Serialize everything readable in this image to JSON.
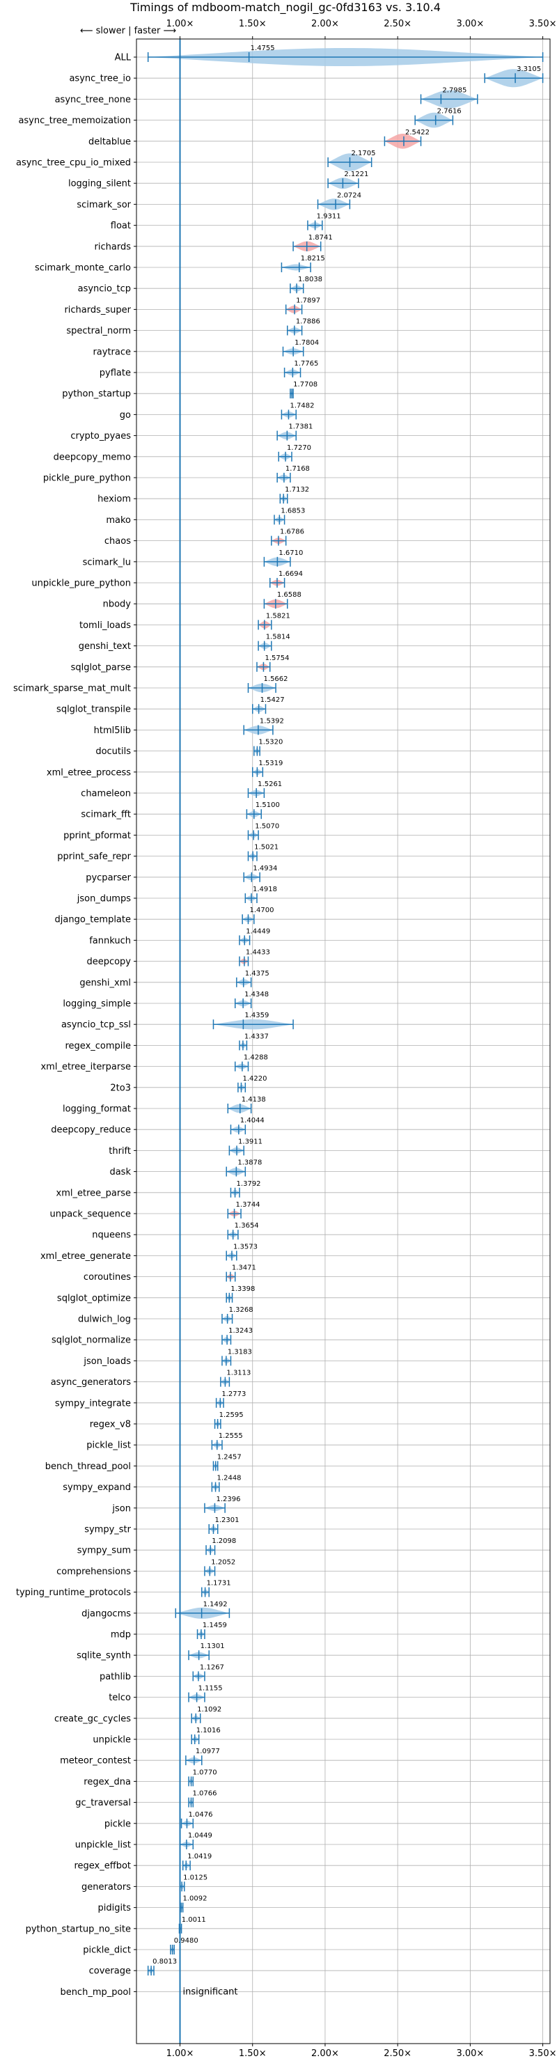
{
  "chart_data": {
    "type": "violin",
    "title": "Timings of mdboom-match_nogil_gc-0fd3163 vs. 3.10.4",
    "direction_label": "⟵ slower | faster ⟶",
    "xlim": [
      0.7,
      3.55
    ],
    "xticks": [
      1.0,
      1.5,
      2.0,
      2.5,
      3.0,
      3.5
    ],
    "xtick_labels": [
      "1.00×",
      "1.50×",
      "2.00×",
      "2.50×",
      "3.00×",
      "3.50×"
    ],
    "reference_line": 1.0,
    "grid": true,
    "colors": {
      "normal": "#a6cbe8",
      "highlight": "#f4a6a6",
      "line": "#1f77b4"
    },
    "benchmarks": [
      {
        "name": "ALL",
        "value": 1.4755,
        "label": "1.4755",
        "min": 0.78,
        "max": 3.5,
        "spread": 0.45,
        "highlight": false
      },
      {
        "name": "async_tree_io",
        "value": 3.3105,
        "label": "3.3105",
        "min": 3.1,
        "max": 3.5,
        "spread": 0.16,
        "highlight": false
      },
      {
        "name": "async_tree_none",
        "value": 2.7985,
        "label": "2.7985",
        "min": 2.66,
        "max": 3.05,
        "spread": 0.15,
        "highlight": false
      },
      {
        "name": "async_tree_memoization",
        "value": 2.7616,
        "label": "2.7616",
        "min": 2.62,
        "max": 2.88,
        "spread": 0.12,
        "highlight": false
      },
      {
        "name": "deltablue",
        "value": 2.5422,
        "label": "2.5422",
        "min": 2.41,
        "max": 2.66,
        "spread": 0.12,
        "highlight": true
      },
      {
        "name": "async_tree_cpu_io_mixed",
        "value": 2.1705,
        "label": "2.1705",
        "min": 2.02,
        "max": 2.32,
        "spread": 0.14,
        "highlight": false
      },
      {
        "name": "logging_silent",
        "value": 2.1221,
        "label": "2.1221",
        "min": 2.02,
        "max": 2.23,
        "spread": 0.09,
        "highlight": false
      },
      {
        "name": "scimark_sor",
        "value": 2.0724,
        "label": "2.0724",
        "min": 1.95,
        "max": 2.17,
        "spread": 0.09,
        "highlight": false
      },
      {
        "name": "float",
        "value": 1.9311,
        "label": "1.9311",
        "min": 1.88,
        "max": 1.98,
        "spread": 0.05,
        "highlight": false
      },
      {
        "name": "richards",
        "value": 1.8741,
        "label": "1.8741",
        "min": 1.78,
        "max": 1.97,
        "spread": 0.08,
        "highlight": true
      },
      {
        "name": "scimark_monte_carlo",
        "value": 1.8215,
        "label": "1.8215",
        "min": 1.7,
        "max": 1.9,
        "spread": 0.05,
        "highlight": false
      },
      {
        "name": "asyncio_tcp",
        "value": 1.8038,
        "label": "1.8038",
        "min": 1.76,
        "max": 1.85,
        "spread": 0.05,
        "highlight": false
      },
      {
        "name": "richards_super",
        "value": 1.7897,
        "label": "1.7897",
        "min": 1.73,
        "max": 1.84,
        "spread": 0.06,
        "highlight": true
      },
      {
        "name": "spectral_norm",
        "value": 1.7886,
        "label": "1.7886",
        "min": 1.74,
        "max": 1.84,
        "spread": 0.05,
        "highlight": false
      },
      {
        "name": "raytrace",
        "value": 1.7804,
        "label": "1.7804",
        "min": 1.71,
        "max": 1.85,
        "spread": 0.05,
        "highlight": false
      },
      {
        "name": "pyflate",
        "value": 1.7765,
        "label": "1.7765",
        "min": 1.72,
        "max": 1.83,
        "spread": 0.05,
        "highlight": false
      },
      {
        "name": "python_startup",
        "value": 1.7708,
        "label": "1.7708",
        "min": 1.76,
        "max": 1.78,
        "spread": 0.02,
        "highlight": false
      },
      {
        "name": "go",
        "value": 1.7482,
        "label": "1.7482",
        "min": 1.7,
        "max": 1.8,
        "spread": 0.05,
        "highlight": false
      },
      {
        "name": "crypto_pyaes",
        "value": 1.7381,
        "label": "1.7381",
        "min": 1.67,
        "max": 1.8,
        "spread": 0.06,
        "highlight": false
      },
      {
        "name": "deepcopy_memo",
        "value": 1.727,
        "label": "1.7270",
        "min": 1.68,
        "max": 1.77,
        "spread": 0.05,
        "highlight": false
      },
      {
        "name": "pickle_pure_python",
        "value": 1.7168,
        "label": "1.7168",
        "min": 1.67,
        "max": 1.76,
        "spread": 0.05,
        "highlight": false
      },
      {
        "name": "hexiom",
        "value": 1.7132,
        "label": "1.7132",
        "min": 1.69,
        "max": 1.74,
        "spread": 0.04,
        "highlight": false
      },
      {
        "name": "mako",
        "value": 1.6853,
        "label": "1.6853",
        "min": 1.65,
        "max": 1.72,
        "spread": 0.04,
        "highlight": false
      },
      {
        "name": "chaos",
        "value": 1.6786,
        "label": "1.6786",
        "min": 1.63,
        "max": 1.73,
        "spread": 0.05,
        "highlight": true
      },
      {
        "name": "scimark_lu",
        "value": 1.671,
        "label": "1.6710",
        "min": 1.58,
        "max": 1.76,
        "spread": 0.07,
        "highlight": false
      },
      {
        "name": "unpickle_pure_python",
        "value": 1.6694,
        "label": "1.6694",
        "min": 1.62,
        "max": 1.72,
        "spread": 0.05,
        "highlight": true
      },
      {
        "name": "nbody",
        "value": 1.6588,
        "label": "1.6588",
        "min": 1.58,
        "max": 1.74,
        "spread": 0.07,
        "highlight": true
      },
      {
        "name": "tomli_loads",
        "value": 1.5821,
        "label": "1.5821",
        "min": 1.54,
        "max": 1.63,
        "spread": 0.06,
        "highlight": true
      },
      {
        "name": "genshi_text",
        "value": 1.5814,
        "label": "1.5814",
        "min": 1.54,
        "max": 1.63,
        "spread": 0.05,
        "highlight": false
      },
      {
        "name": "sqlglot_parse",
        "value": 1.5754,
        "label": "1.5754",
        "min": 1.53,
        "max": 1.62,
        "spread": 0.05,
        "highlight": true
      },
      {
        "name": "scimark_sparse_mat_mult",
        "value": 1.5662,
        "label": "1.5662",
        "min": 1.47,
        "max": 1.66,
        "spread": 0.07,
        "highlight": false
      },
      {
        "name": "sqlglot_transpile",
        "value": 1.5427,
        "label": "1.5427",
        "min": 1.5,
        "max": 1.59,
        "spread": 0.05,
        "highlight": false
      },
      {
        "name": "html5lib",
        "value": 1.5392,
        "label": "1.5392",
        "min": 1.44,
        "max": 1.64,
        "spread": 0.07,
        "highlight": false
      },
      {
        "name": "docutils",
        "value": 1.532,
        "label": "1.5320",
        "min": 1.51,
        "max": 1.55,
        "spread": 0.03,
        "highlight": false
      },
      {
        "name": "xml_etree_process",
        "value": 1.5319,
        "label": "1.5319",
        "min": 1.5,
        "max": 1.57,
        "spread": 0.04,
        "highlight": false
      },
      {
        "name": "chameleon",
        "value": 1.5261,
        "label": "1.5261",
        "min": 1.47,
        "max": 1.58,
        "spread": 0.05,
        "highlight": false
      },
      {
        "name": "scimark_fft",
        "value": 1.51,
        "label": "1.5100",
        "min": 1.46,
        "max": 1.56,
        "spread": 0.05,
        "highlight": false
      },
      {
        "name": "pprint_pformat",
        "value": 1.507,
        "label": "1.5070",
        "min": 1.47,
        "max": 1.54,
        "spread": 0.04,
        "highlight": false
      },
      {
        "name": "pprint_safe_repr",
        "value": 1.5021,
        "label": "1.5021",
        "min": 1.47,
        "max": 1.53,
        "spread": 0.04,
        "highlight": false
      },
      {
        "name": "pycparser",
        "value": 1.4934,
        "label": "1.4934",
        "min": 1.44,
        "max": 1.55,
        "spread": 0.05,
        "highlight": false
      },
      {
        "name": "json_dumps",
        "value": 1.4918,
        "label": "1.4918",
        "min": 1.45,
        "max": 1.53,
        "spread": 0.04,
        "highlight": false
      },
      {
        "name": "django_template",
        "value": 1.47,
        "label": "1.4700",
        "min": 1.43,
        "max": 1.51,
        "spread": 0.04,
        "highlight": false
      },
      {
        "name": "fannkuch",
        "value": 1.4449,
        "label": "1.4449",
        "min": 1.41,
        "max": 1.48,
        "spread": 0.04,
        "highlight": false
      },
      {
        "name": "deepcopy",
        "value": 1.4433,
        "label": "1.4433",
        "min": 1.41,
        "max": 1.47,
        "spread": 0.04,
        "highlight": true
      },
      {
        "name": "genshi_xml",
        "value": 1.4375,
        "label": "1.4375",
        "min": 1.39,
        "max": 1.49,
        "spread": 0.05,
        "highlight": false
      },
      {
        "name": "logging_simple",
        "value": 1.4348,
        "label": "1.4348",
        "min": 1.38,
        "max": 1.49,
        "spread": 0.05,
        "highlight": false
      },
      {
        "name": "asyncio_tcp_ssl",
        "value": 1.4359,
        "label": "1.4359",
        "min": 1.23,
        "max": 1.78,
        "spread": 0.08,
        "highlight": false
      },
      {
        "name": "regex_compile",
        "value": 1.4337,
        "label": "1.4337",
        "min": 1.41,
        "max": 1.46,
        "spread": 0.03,
        "highlight": false
      },
      {
        "name": "xml_etree_iterparse",
        "value": 1.4288,
        "label": "1.4288",
        "min": 1.38,
        "max": 1.47,
        "spread": 0.04,
        "highlight": false
      },
      {
        "name": "2to3",
        "value": 1.422,
        "label": "1.4220",
        "min": 1.4,
        "max": 1.45,
        "spread": 0.03,
        "highlight": false
      },
      {
        "name": "logging_format",
        "value": 1.4138,
        "label": "1.4138",
        "min": 1.33,
        "max": 1.49,
        "spread": 0.07,
        "highlight": false
      },
      {
        "name": "deepcopy_reduce",
        "value": 1.4044,
        "label": "1.4044",
        "min": 1.35,
        "max": 1.45,
        "spread": 0.05,
        "highlight": false
      },
      {
        "name": "thrift",
        "value": 1.3911,
        "label": "1.3911",
        "min": 1.34,
        "max": 1.44,
        "spread": 0.05,
        "highlight": false
      },
      {
        "name": "dask",
        "value": 1.3878,
        "label": "1.3878",
        "min": 1.32,
        "max": 1.45,
        "spread": 0.06,
        "highlight": false
      },
      {
        "name": "xml_etree_parse",
        "value": 1.3792,
        "label": "1.3792",
        "min": 1.35,
        "max": 1.41,
        "spread": 0.04,
        "highlight": false
      },
      {
        "name": "unpack_sequence",
        "value": 1.3744,
        "label": "1.3744",
        "min": 1.33,
        "max": 1.42,
        "spread": 0.04,
        "highlight": true
      },
      {
        "name": "nqueens",
        "value": 1.3654,
        "label": "1.3654",
        "min": 1.33,
        "max": 1.4,
        "spread": 0.04,
        "highlight": false
      },
      {
        "name": "xml_etree_generate",
        "value": 1.3573,
        "label": "1.3573",
        "min": 1.32,
        "max": 1.39,
        "spread": 0.04,
        "highlight": false
      },
      {
        "name": "coroutines",
        "value": 1.3471,
        "label": "1.3471",
        "min": 1.32,
        "max": 1.38,
        "spread": 0.04,
        "highlight": true
      },
      {
        "name": "sqlglot_optimize",
        "value": 1.3398,
        "label": "1.3398",
        "min": 1.32,
        "max": 1.36,
        "spread": 0.03,
        "highlight": false
      },
      {
        "name": "dulwich_log",
        "value": 1.3268,
        "label": "1.3268",
        "min": 1.29,
        "max": 1.36,
        "spread": 0.04,
        "highlight": false
      },
      {
        "name": "sqlglot_normalize",
        "value": 1.3243,
        "label": "1.3243",
        "min": 1.29,
        "max": 1.35,
        "spread": 0.04,
        "highlight": false
      },
      {
        "name": "json_loads",
        "value": 1.3183,
        "label": "1.3183",
        "min": 1.29,
        "max": 1.35,
        "spread": 0.04,
        "highlight": false
      },
      {
        "name": "async_generators",
        "value": 1.3113,
        "label": "1.3113",
        "min": 1.28,
        "max": 1.34,
        "spread": 0.04,
        "highlight": false
      },
      {
        "name": "sympy_integrate",
        "value": 1.2773,
        "label": "1.2773",
        "min": 1.25,
        "max": 1.3,
        "spread": 0.03,
        "highlight": false
      },
      {
        "name": "regex_v8",
        "value": 1.2595,
        "label": "1.2595",
        "min": 1.24,
        "max": 1.28,
        "spread": 0.02,
        "highlight": false
      },
      {
        "name": "pickle_list",
        "value": 1.2555,
        "label": "1.2555",
        "min": 1.22,
        "max": 1.29,
        "spread": 0.04,
        "highlight": false
      },
      {
        "name": "bench_thread_pool",
        "value": 1.2457,
        "label": "1.2457",
        "min": 1.23,
        "max": 1.26,
        "spread": 0.02,
        "highlight": false
      },
      {
        "name": "sympy_expand",
        "value": 1.2448,
        "label": "1.2448",
        "min": 1.22,
        "max": 1.27,
        "spread": 0.03,
        "highlight": false
      },
      {
        "name": "json",
        "value": 1.2396,
        "label": "1.2396",
        "min": 1.17,
        "max": 1.31,
        "spread": 0.05,
        "highlight": false
      },
      {
        "name": "sympy_str",
        "value": 1.2301,
        "label": "1.2301",
        "min": 1.2,
        "max": 1.26,
        "spread": 0.03,
        "highlight": false
      },
      {
        "name": "sympy_sum",
        "value": 1.2098,
        "label": "1.2098",
        "min": 1.18,
        "max": 1.24,
        "spread": 0.03,
        "highlight": false
      },
      {
        "name": "comprehensions",
        "value": 1.2052,
        "label": "1.2052",
        "min": 1.17,
        "max": 1.24,
        "spread": 0.03,
        "highlight": false
      },
      {
        "name": "typing_runtime_protocols",
        "value": 1.1731,
        "label": "1.1731",
        "min": 1.15,
        "max": 1.2,
        "spread": 0.03,
        "highlight": false
      },
      {
        "name": "djangocms",
        "value": 1.1492,
        "label": "1.1492",
        "min": 0.97,
        "max": 1.34,
        "spread": 0.09,
        "highlight": false
      },
      {
        "name": "mdp",
        "value": 1.1459,
        "label": "1.1459",
        "min": 1.12,
        "max": 1.17,
        "spread": 0.03,
        "highlight": false
      },
      {
        "name": "sqlite_synth",
        "value": 1.1301,
        "label": "1.1301",
        "min": 1.06,
        "max": 1.2,
        "spread": 0.05,
        "highlight": false
      },
      {
        "name": "pathlib",
        "value": 1.1267,
        "label": "1.1267",
        "min": 1.09,
        "max": 1.17,
        "spread": 0.04,
        "highlight": false
      },
      {
        "name": "telco",
        "value": 1.1155,
        "label": "1.1155",
        "min": 1.06,
        "max": 1.17,
        "spread": 0.05,
        "highlight": false
      },
      {
        "name": "create_gc_cycles",
        "value": 1.1092,
        "label": "1.1092",
        "min": 1.08,
        "max": 1.14,
        "spread": 0.03,
        "highlight": false
      },
      {
        "name": "unpickle",
        "value": 1.1016,
        "label": "1.1016",
        "min": 1.08,
        "max": 1.13,
        "spread": 0.03,
        "highlight": false
      },
      {
        "name": "meteor_contest",
        "value": 1.0977,
        "label": "1.0977",
        "min": 1.04,
        "max": 1.15,
        "spread": 0.05,
        "highlight": false
      },
      {
        "name": "regex_dna",
        "value": 1.077,
        "label": "1.0770",
        "min": 1.06,
        "max": 1.09,
        "spread": 0.02,
        "highlight": false
      },
      {
        "name": "gc_traversal",
        "value": 1.0766,
        "label": "1.0766",
        "min": 1.06,
        "max": 1.09,
        "spread": 0.02,
        "highlight": false
      },
      {
        "name": "pickle",
        "value": 1.0476,
        "label": "1.0476",
        "min": 1.01,
        "max": 1.09,
        "spread": 0.04,
        "highlight": false
      },
      {
        "name": "unpickle_list",
        "value": 1.0449,
        "label": "1.0449",
        "min": 1.0,
        "max": 1.09,
        "spread": 0.04,
        "highlight": false
      },
      {
        "name": "regex_effbot",
        "value": 1.0419,
        "label": "1.0419",
        "min": 1.02,
        "max": 1.07,
        "spread": 0.03,
        "highlight": false
      },
      {
        "name": "generators",
        "value": 1.0125,
        "label": "1.0125",
        "min": 1.0,
        "max": 1.03,
        "spread": 0.02,
        "highlight": false
      },
      {
        "name": "pidigits",
        "value": 1.0092,
        "label": "1.0092",
        "min": 1.0,
        "max": 1.02,
        "spread": 0.015,
        "highlight": false
      },
      {
        "name": "python_startup_no_site",
        "value": 1.0011,
        "label": "1.0011",
        "min": 0.995,
        "max": 1.01,
        "spread": 0.012,
        "highlight": false
      },
      {
        "name": "pickle_dict",
        "value": 0.948,
        "label": "0.9480",
        "min": 0.935,
        "max": 0.96,
        "spread": 0.02,
        "highlight": false
      },
      {
        "name": "coverage",
        "value": 0.8013,
        "label": "0.8013",
        "min": 0.78,
        "max": 0.82,
        "spread": 0.03,
        "highlight": false
      },
      {
        "name": "bench_mp_pool",
        "value": 1.0,
        "label": "insignificant",
        "min": 1.0,
        "max": 1.0,
        "spread": 0,
        "highlight": false,
        "insignificant": true
      }
    ]
  }
}
